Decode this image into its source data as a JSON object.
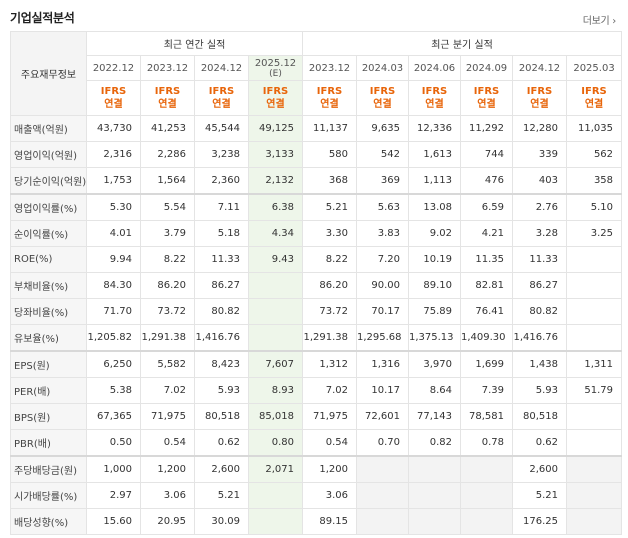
{
  "header": {
    "title": "기업실적분석",
    "more_label": "더보기"
  },
  "table": {
    "corner_label": "주요재무정보",
    "group_annual": "최근 연간 실적",
    "group_quarter": "최근 분기 실적",
    "periods": [
      "2022.12",
      "2023.12",
      "2024.12",
      "2025.12",
      "2023.12",
      "2024.03",
      "2024.06",
      "2024.09",
      "2024.12",
      "2025.03"
    ],
    "estimate_mark": "(E)",
    "ifrs": "IFRS",
    "consol": "연결",
    "rows": [
      {
        "label": "매출액(억원)",
        "values": [
          "43,730",
          "41,253",
          "45,544",
          "49,125",
          "11,137",
          "9,635",
          "12,336",
          "11,292",
          "12,280",
          "11,035"
        ]
      },
      {
        "label": "영업이익(억원)",
        "values": [
          "2,316",
          "2,286",
          "3,238",
          "3,133",
          "580",
          "542",
          "1,613",
          "744",
          "339",
          "562"
        ]
      },
      {
        "label": "당기순이익(억원)",
        "values": [
          "1,753",
          "1,564",
          "2,360",
          "2,132",
          "368",
          "369",
          "1,113",
          "476",
          "403",
          "358"
        ]
      },
      {
        "label": "영업이익률(%)",
        "values": [
          "5.30",
          "5.54",
          "7.11",
          "6.38",
          "5.21",
          "5.63",
          "13.08",
          "6.59",
          "2.76",
          "5.10"
        ]
      },
      {
        "label": "순이익률(%)",
        "values": [
          "4.01",
          "3.79",
          "5.18",
          "4.34",
          "3.30",
          "3.83",
          "9.02",
          "4.21",
          "3.28",
          "3.25"
        ]
      },
      {
        "label": "ROE(%)",
        "values": [
          "9.94",
          "8.22",
          "11.33",
          "9.43",
          "8.22",
          "7.20",
          "10.19",
          "11.35",
          "11.33",
          ""
        ]
      },
      {
        "label": "부채비율(%)",
        "values": [
          "84.30",
          "86.20",
          "86.27",
          "",
          "86.20",
          "90.00",
          "89.10",
          "82.81",
          "86.27",
          ""
        ]
      },
      {
        "label": "당좌비율(%)",
        "values": [
          "71.70",
          "73.72",
          "80.82",
          "",
          "73.72",
          "70.17",
          "75.89",
          "76.41",
          "80.82",
          ""
        ]
      },
      {
        "label": "유보율(%)",
        "values": [
          "1,205.82",
          "1,291.38",
          "1,416.76",
          "",
          "1,291.38",
          "1,295.68",
          "1,375.13",
          "1,409.30",
          "1,416.76",
          ""
        ]
      },
      {
        "label": "EPS(원)",
        "values": [
          "6,250",
          "5,582",
          "8,423",
          "7,607",
          "1,312",
          "1,316",
          "3,970",
          "1,699",
          "1,438",
          "1,311"
        ]
      },
      {
        "label": "PER(배)",
        "values": [
          "5.38",
          "7.02",
          "5.93",
          "8.93",
          "7.02",
          "10.17",
          "8.64",
          "7.39",
          "5.93",
          "51.79"
        ]
      },
      {
        "label": "BPS(원)",
        "values": [
          "67,365",
          "71,975",
          "80,518",
          "85,018",
          "71,975",
          "72,601",
          "77,143",
          "78,581",
          "80,518",
          ""
        ]
      },
      {
        "label": "PBR(배)",
        "values": [
          "0.50",
          "0.54",
          "0.62",
          "0.80",
          "0.54",
          "0.70",
          "0.82",
          "0.78",
          "0.62",
          ""
        ]
      },
      {
        "label": "주당배당금(원)",
        "values": [
          "1,000",
          "1,200",
          "2,600",
          "2,071",
          "1,200",
          "",
          "",
          "",
          "2,600",
          ""
        ]
      },
      {
        "label": "시가배당률(%)",
        "values": [
          "2.97",
          "3.06",
          "5.21",
          "",
          "3.06",
          "",
          "",
          "",
          "5.21",
          ""
        ]
      },
      {
        "label": "배당성향(%)",
        "values": [
          "15.60",
          "20.95",
          "30.09",
          "",
          "89.15",
          "",
          "",
          "",
          "176.25",
          ""
        ]
      }
    ]
  }
}
